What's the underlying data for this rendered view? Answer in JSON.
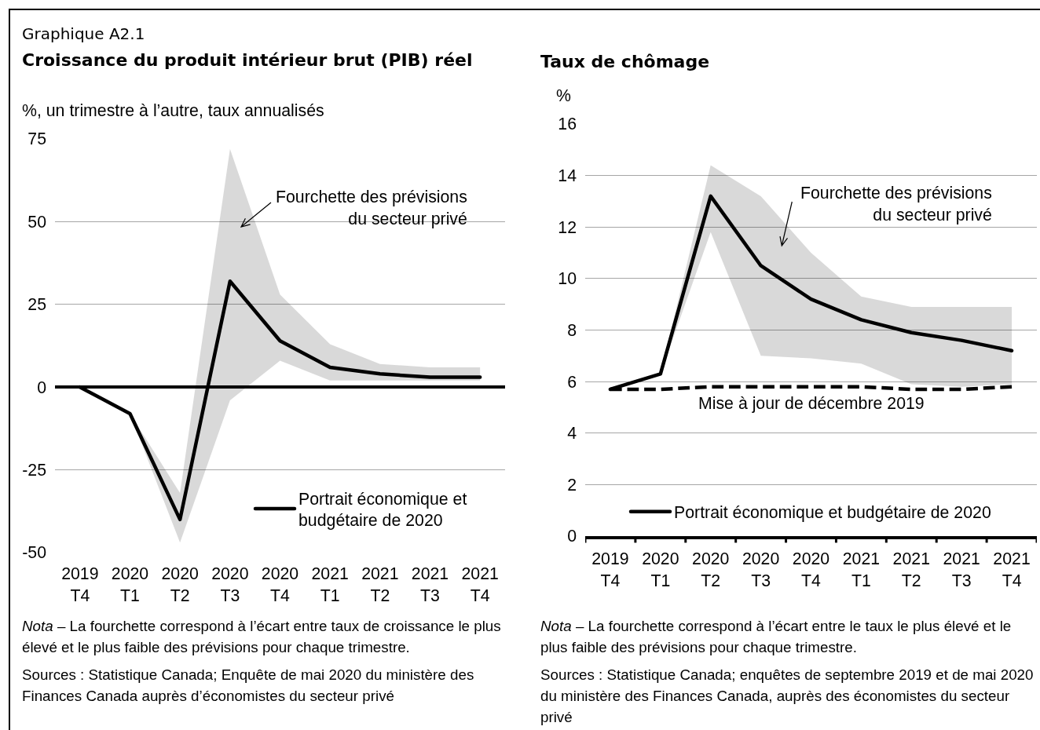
{
  "chart_data": [
    {
      "type": "line",
      "title": "Croissance du produit intérieur brut (PIB) réel",
      "ylabel": "%, un trimestre à l’autre, taux annualisés",
      "categories": [
        "2019 T4",
        "2020 T1",
        "2020 T2",
        "2020 T3",
        "2020 T4",
        "2021 T1",
        "2021 T2",
        "2021 T3",
        "2021 T4"
      ],
      "series": [
        {
          "name": "Portrait économique et budgétaire de 2020",
          "color": "#000000",
          "values": [
            0,
            -8,
            -40,
            32,
            14,
            6,
            4,
            3,
            3
          ],
          "lower": [
            null,
            -8,
            -47,
            -4,
            8,
            2,
            2,
            2,
            2
          ],
          "upper": [
            null,
            -8,
            -32,
            72,
            28,
            13,
            7,
            6,
            6
          ]
        }
      ],
      "ylim": [
        -50,
        75
      ],
      "yticks": [
        -50,
        -25,
        0,
        25,
        50,
        75
      ],
      "grid": "y",
      "legend": "bottom right",
      "annotations": [
        "Graphique A2.1",
        "Fourchette des prévisions du secteur privé",
        "Nota – La fourchette correspond à l’écart entre taux de croissance le plus élevé et le plus faible des prévisions pour chaque trimestre.",
        "Sources : Statistique Canada; Enquête de mai 2020 du ministère des Finances Canada auprès d’économistes du secteur privé"
      ]
    },
    {
      "type": "line",
      "title": "Taux de chômage",
      "ylabel": "%",
      "categories": [
        "2019 T4",
        "2020 T1",
        "2020 T2",
        "2020 T3",
        "2020 T4",
        "2021 T1",
        "2021 T2",
        "2021 T3",
        "2021 T4"
      ],
      "series": [
        {
          "name": "Portrait économique et budgétaire de 2020",
          "color": "#000000",
          "values": [
            5.7,
            6.3,
            13.2,
            10.5,
            9.2,
            8.4,
            7.9,
            7.6,
            7.2
          ],
          "lower": [
            null,
            6.3,
            11.8,
            7.0,
            6.9,
            6.7,
            5.9,
            5.8,
            5.9
          ],
          "upper": [
            null,
            6.3,
            14.4,
            13.2,
            11.0,
            9.3,
            8.9,
            8.9,
            8.9
          ]
        },
        {
          "name": "Mise à jour de décembre 2019",
          "color": "#000000",
          "line_style": "dashed",
          "values": [
            5.7,
            5.7,
            5.8,
            5.8,
            5.8,
            5.8,
            5.7,
            5.7,
            5.8
          ]
        }
      ],
      "ylim": [
        0,
        16
      ],
      "yticks": [
        0,
        2,
        4,
        6,
        8,
        10,
        12,
        14,
        16
      ],
      "grid": "y",
      "legend": "bottom",
      "annotations": [
        "Fourchette des prévisions du secteur privé",
        "Nota – La fourchette correspond à l’écart entre le taux le plus élevé et le plus faible des prévisions pour chaque trimestre.",
        "Sources : Statistique Canada; enquêtes de septembre 2019 et de mai 2020 du ministère des Finances Canada, auprès des économistes du secteur privé"
      ]
    }
  ]
}
